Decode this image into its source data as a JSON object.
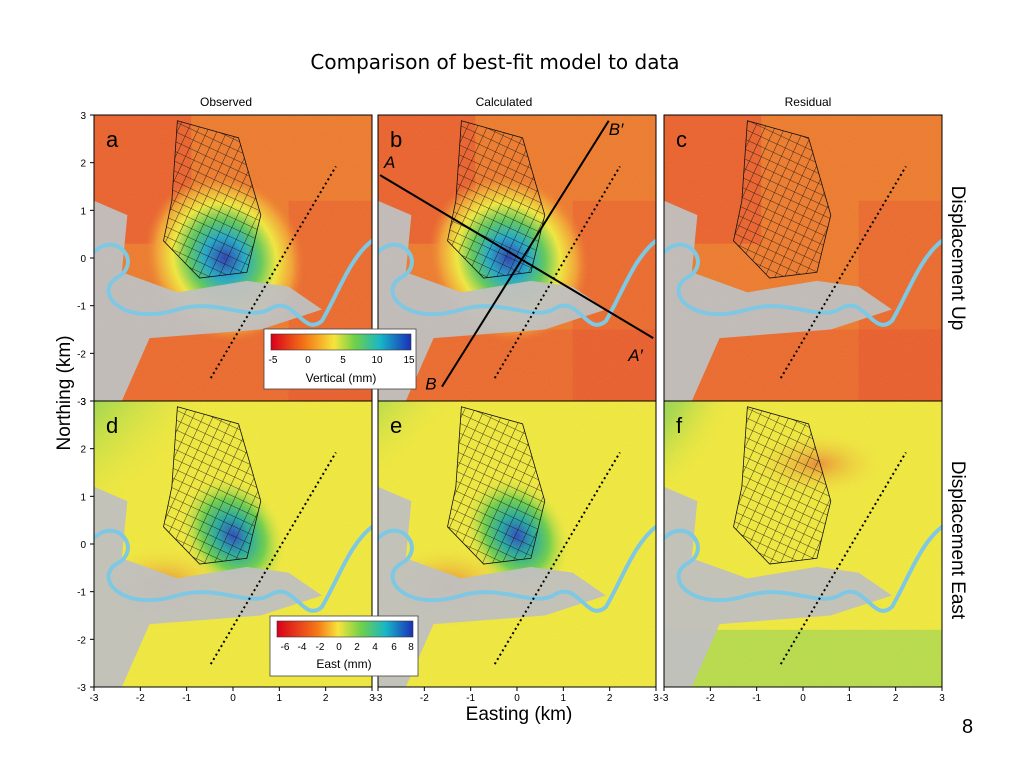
{
  "slide": {
    "title": "Comparison of best-fit model to data",
    "page_number": "8"
  },
  "columns": [
    "Observed",
    "Calculated",
    "Residual"
  ],
  "rows": [
    "Displacement Up",
    "Displacement East"
  ],
  "panel_letters": [
    "a",
    "b",
    "c",
    "d",
    "e",
    "f"
  ],
  "axes": {
    "xlabel": "Easting (km)",
    "ylabel": "Northing (km)",
    "x_ticks": [
      "-3",
      "-2",
      "-1",
      "0",
      "1",
      "2",
      "3"
    ],
    "y_ticks": [
      "3",
      "2",
      "1",
      "0",
      "-1",
      "-2",
      "-3"
    ]
  },
  "profiles": {
    "a_start": "A",
    "a_end": "A′",
    "b_start": "B",
    "b_end": "B′"
  },
  "colorbars": {
    "vertical": {
      "label": "Vertical (mm)",
      "ticks": [
        "-5",
        "0",
        "5",
        "10",
        "15"
      ]
    },
    "east": {
      "label": "East (mm)",
      "ticks": [
        "-6",
        "-4",
        "-2",
        "0",
        "2",
        "4",
        "6",
        "8"
      ]
    }
  },
  "colors": {
    "river": "#7ec8e3",
    "land_gray": "#c0c0c0",
    "orange": "#ef7a2a",
    "red": "#e8432a",
    "yellow": "#f2ea3a",
    "blue": "#2a3fb0",
    "green": "#34c06a"
  }
}
